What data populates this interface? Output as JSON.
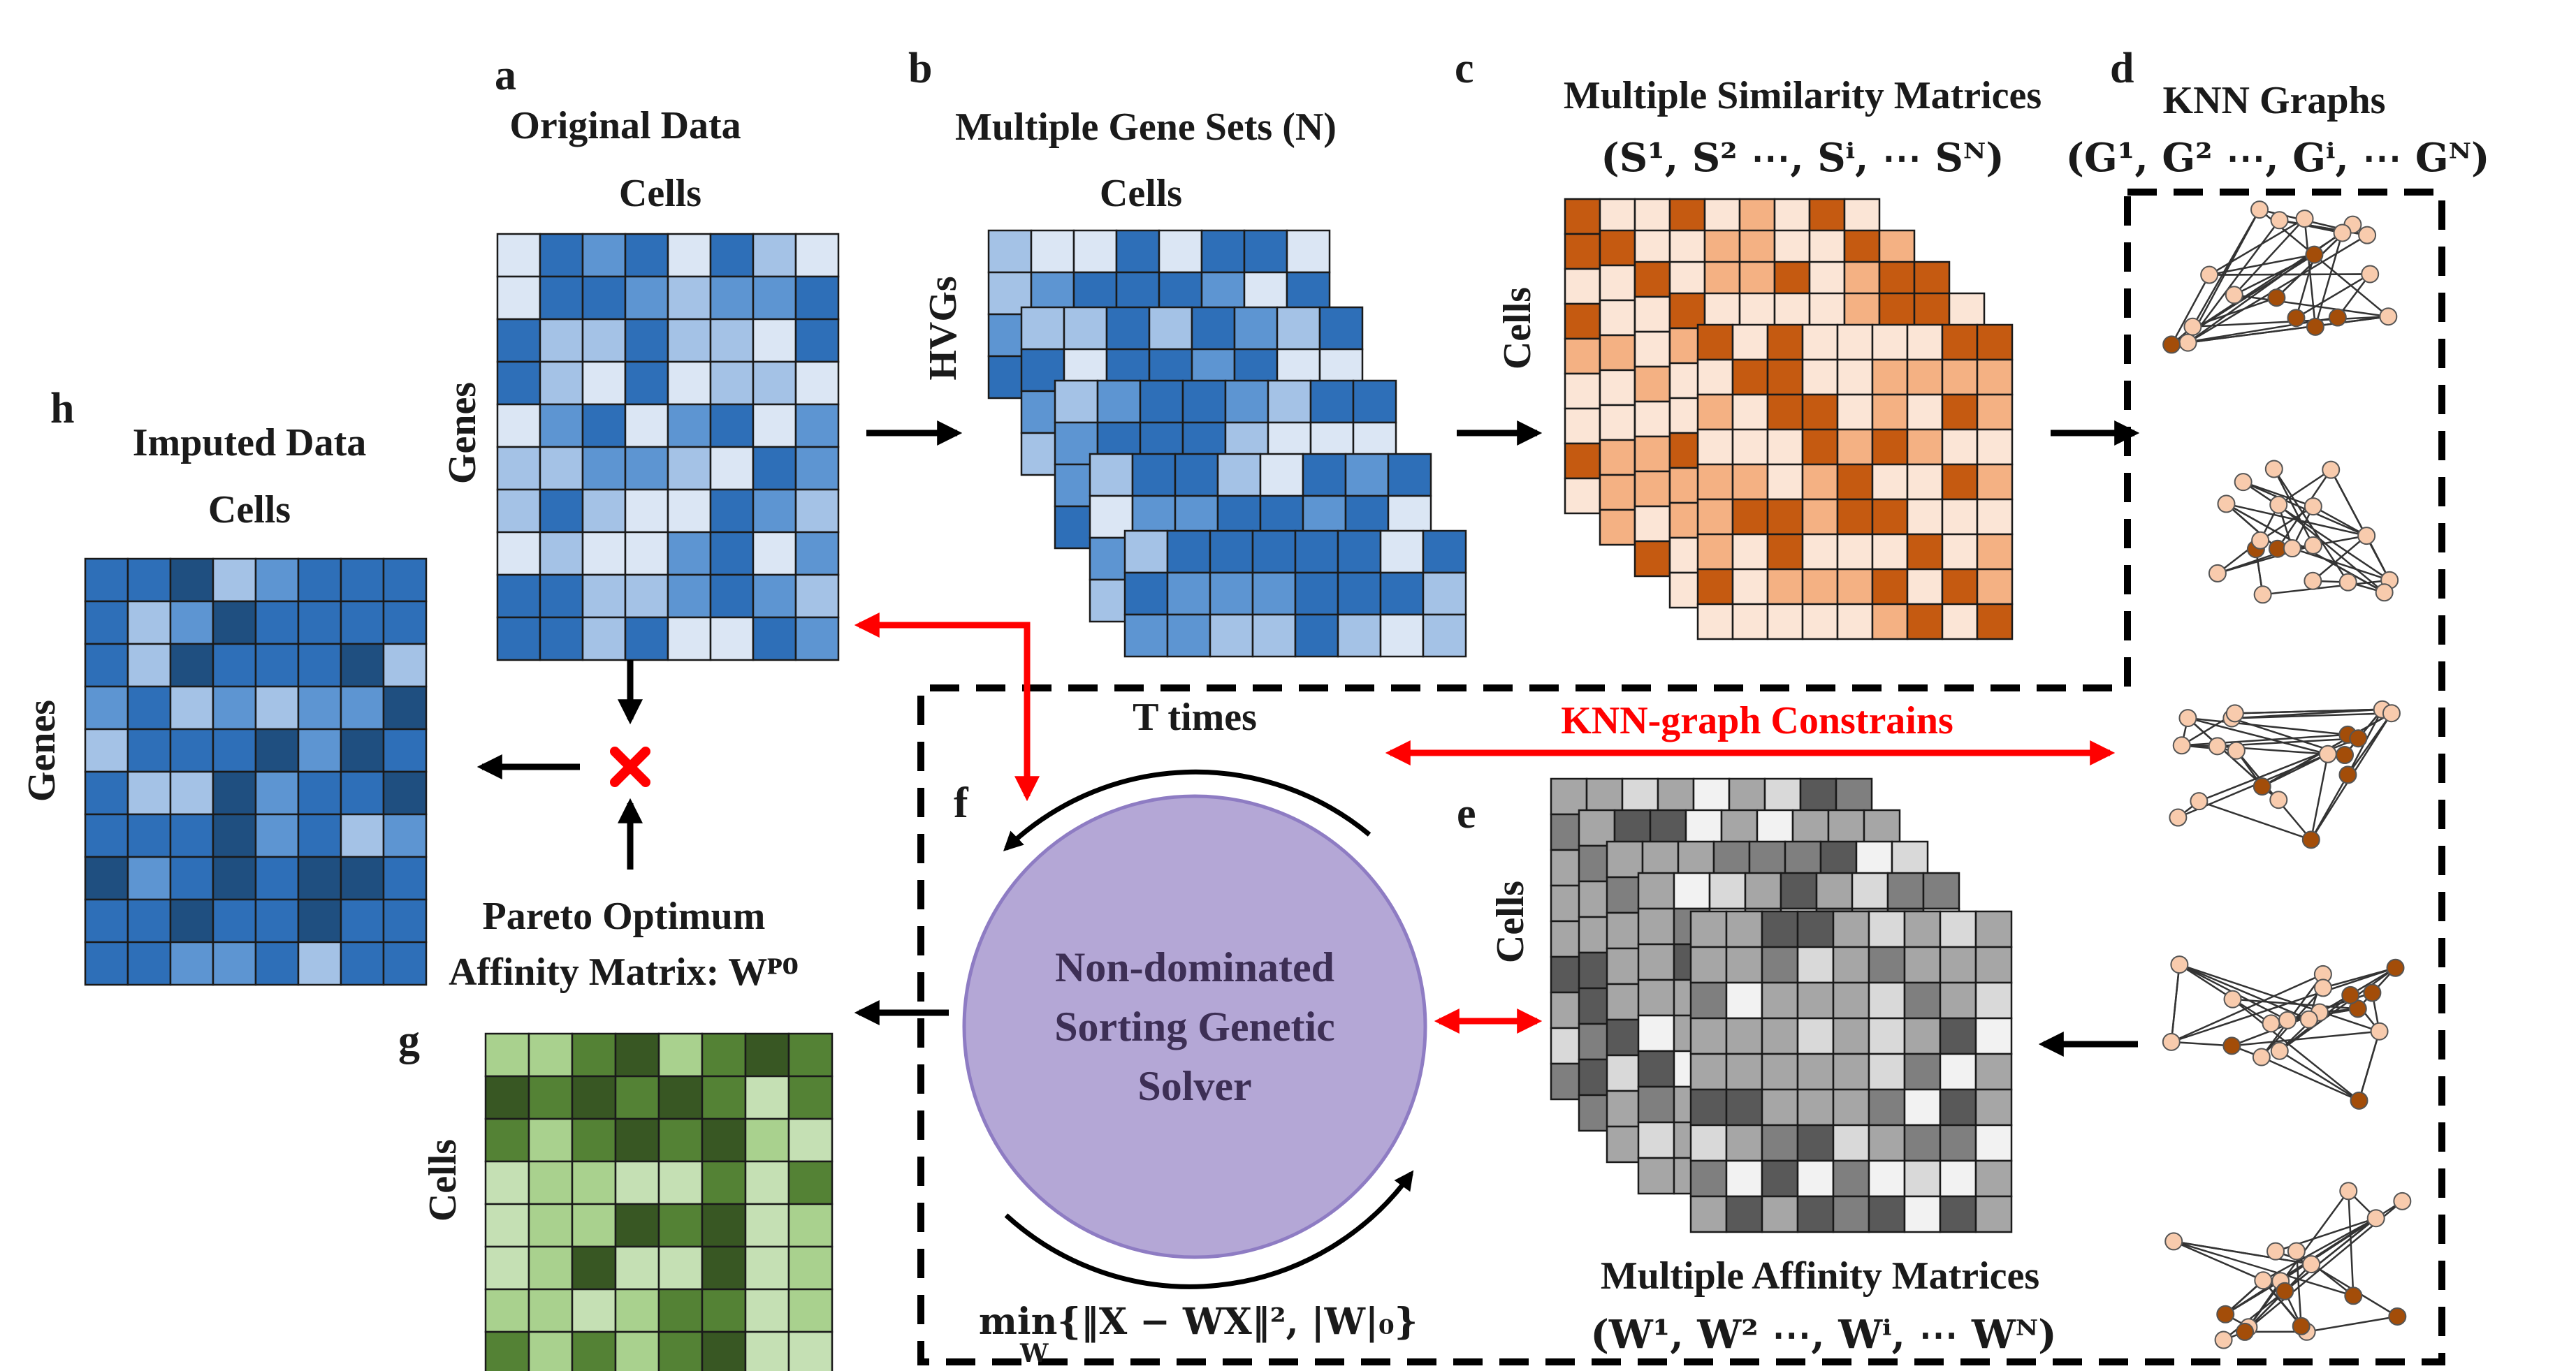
{
  "panels": {
    "a": {
      "letter": "a",
      "title": "Original Data",
      "cols_label": "Cells",
      "rows_label": "Genes"
    },
    "b": {
      "letter": "b",
      "title": "Multiple Gene Sets (N)",
      "cols_label": "Cells",
      "rows_label": "HVGs"
    },
    "c": {
      "letter": "c",
      "title": "Multiple Similarity Matrices",
      "formula": "(S¹, S² ⋯, Sⁱ, ⋯ Sᴺ)",
      "rows_label": "Cells"
    },
    "d": {
      "letter": "d",
      "title": "KNN Graphs",
      "formula": "(G¹, G² ⋯, Gⁱ, ⋯ Gᴺ)"
    },
    "e": {
      "letter": "e",
      "title": "Multiple Affinity Matrices",
      "formula": "(W¹, W² ⋯, Wⁱ, ⋯ Wᴺ)",
      "rows_label": "Cells"
    },
    "f": {
      "letter": "f",
      "loop_label": "T times",
      "solver_lines": [
        "Non-dominated",
        "Sorting Genetic",
        "Solver"
      ],
      "objective": "min{‖X − WX‖², |W|₀}",
      "objective_sub": "W",
      "constraint_label": "KNN-graph Constrains"
    },
    "g": {
      "letter": "g",
      "title_line1": "Pareto Optimum",
      "title_line2": "Affinity Matrix: Wᴾᴼ",
      "rows_label": "Cells"
    },
    "h": {
      "letter": "h",
      "title": "Imputed Data",
      "cols_label": "Cells",
      "rows_label": "Genes"
    }
  },
  "colors": {
    "blue": [
      "#dbe6f4",
      "#a4c2e6",
      "#5d95d2",
      "#2e6fb8",
      "#1f4f80"
    ],
    "orange": [
      "#fbe5d6",
      "#f4b183",
      "#c55a11"
    ],
    "gray": [
      "#f2f2f2",
      "#d9d9d9",
      "#a6a6a6",
      "#7f7f7f",
      "#595959"
    ],
    "green": [
      "#c5e0b4",
      "#a9d18e",
      "#548235",
      "#385723"
    ],
    "arrow_black": "#000000",
    "arrow_red": "#ff0000",
    "solver_fill": "#b4a7d6",
    "node_light": "#f8cbad",
    "node_dark": "#a34d09"
  }
}
